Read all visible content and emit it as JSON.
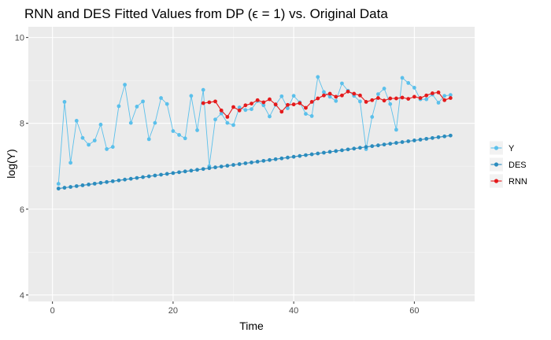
{
  "chart_data": {
    "type": "line",
    "title": "RNN and DES Fitted Values from DP (ϵ = 1) vs. Original Data",
    "xlabel": "Time",
    "ylabel": "log(Y)",
    "xlim": [
      -4,
      70
    ],
    "ylim": [
      3.85,
      10.25
    ],
    "x_ticks": [
      0,
      20,
      40,
      60
    ],
    "y_ticks": [
      4,
      6,
      8,
      10
    ],
    "grid": true,
    "legend_position": "right",
    "series": [
      {
        "name": "Y",
        "color": "#5bc0eb",
        "x": [
          1,
          2,
          3,
          4,
          5,
          6,
          7,
          8,
          9,
          10,
          11,
          12,
          13,
          14,
          15,
          16,
          17,
          18,
          19,
          20,
          21,
          22,
          23,
          24,
          25,
          26,
          27,
          28,
          29,
          30,
          31,
          32,
          33,
          34,
          35,
          36,
          37,
          38,
          39,
          40,
          41,
          42,
          43,
          44,
          45,
          46,
          47,
          48,
          49,
          50,
          51,
          52,
          53,
          54,
          55,
          56,
          57,
          58,
          59,
          60,
          61,
          62,
          63,
          64,
          65,
          66
        ],
        "values": [
          6.59,
          8.5,
          7.08,
          8.06,
          7.66,
          7.5,
          7.6,
          7.97,
          7.4,
          7.45,
          8.4,
          8.9,
          8.01,
          8.39,
          8.51,
          7.63,
          8.01,
          8.59,
          8.45,
          7.82,
          7.73,
          7.65,
          8.64,
          7.84,
          8.78,
          7.0,
          8.09,
          8.23,
          8.01,
          7.96,
          8.37,
          8.31,
          8.33,
          8.52,
          8.42,
          8.16,
          8.43,
          8.63,
          8.35,
          8.64,
          8.49,
          8.22,
          8.17,
          9.08,
          8.73,
          8.62,
          8.52,
          8.93,
          8.76,
          8.64,
          8.51,
          7.4,
          8.15,
          8.68,
          8.81,
          8.45,
          7.85,
          9.06,
          8.94,
          8.83,
          8.56,
          8.56,
          8.67,
          8.48,
          8.64,
          8.66
        ]
      },
      {
        "name": "DES",
        "color": "#2b8cbe",
        "x": [
          1,
          2,
          3,
          4,
          5,
          6,
          7,
          8,
          9,
          10,
          11,
          12,
          13,
          14,
          15,
          16,
          17,
          18,
          19,
          20,
          21,
          22,
          23,
          24,
          25,
          26,
          27,
          28,
          29,
          30,
          31,
          32,
          33,
          34,
          35,
          36,
          37,
          38,
          39,
          40,
          41,
          42,
          43,
          44,
          45,
          46,
          47,
          48,
          49,
          50,
          51,
          52,
          53,
          54,
          55,
          56,
          57,
          58,
          59,
          60,
          61,
          62,
          63,
          64,
          65,
          66
        ],
        "values": [
          6.48,
          6.499,
          6.518,
          6.537,
          6.556,
          6.575,
          6.594,
          6.613,
          6.632,
          6.651,
          6.67,
          6.689,
          6.708,
          6.727,
          6.746,
          6.765,
          6.784,
          6.803,
          6.822,
          6.841,
          6.86,
          6.879,
          6.898,
          6.917,
          6.936,
          6.955,
          6.974,
          6.993,
          7.012,
          7.031,
          7.05,
          7.069,
          7.088,
          7.107,
          7.126,
          7.145,
          7.164,
          7.183,
          7.202,
          7.221,
          7.24,
          7.259,
          7.278,
          7.297,
          7.316,
          7.335,
          7.354,
          7.373,
          7.392,
          7.411,
          7.43,
          7.449,
          7.468,
          7.487,
          7.506,
          7.525,
          7.544,
          7.563,
          7.582,
          7.601,
          7.62,
          7.639,
          7.658,
          7.677,
          7.696,
          7.715
        ]
      },
      {
        "name": "RNN",
        "color": "#e41a1c",
        "x": [
          25,
          26,
          27,
          28,
          29,
          30,
          31,
          32,
          33,
          34,
          35,
          36,
          37,
          38,
          39,
          40,
          41,
          42,
          43,
          44,
          45,
          46,
          47,
          48,
          49,
          50,
          51,
          52,
          53,
          54,
          55,
          56,
          57,
          58,
          59,
          60,
          61,
          62,
          63,
          64,
          65,
          66
        ],
        "values": [
          8.47,
          8.49,
          8.51,
          8.3,
          8.15,
          8.38,
          8.3,
          8.42,
          8.46,
          8.54,
          8.49,
          8.56,
          8.44,
          8.27,
          8.43,
          8.44,
          8.47,
          8.36,
          8.5,
          8.58,
          8.65,
          8.69,
          8.62,
          8.65,
          8.74,
          8.69,
          8.65,
          8.5,
          8.54,
          8.59,
          8.53,
          8.58,
          8.58,
          8.6,
          8.57,
          8.62,
          8.59,
          8.65,
          8.7,
          8.72,
          8.54,
          8.59
        ]
      }
    ]
  }
}
